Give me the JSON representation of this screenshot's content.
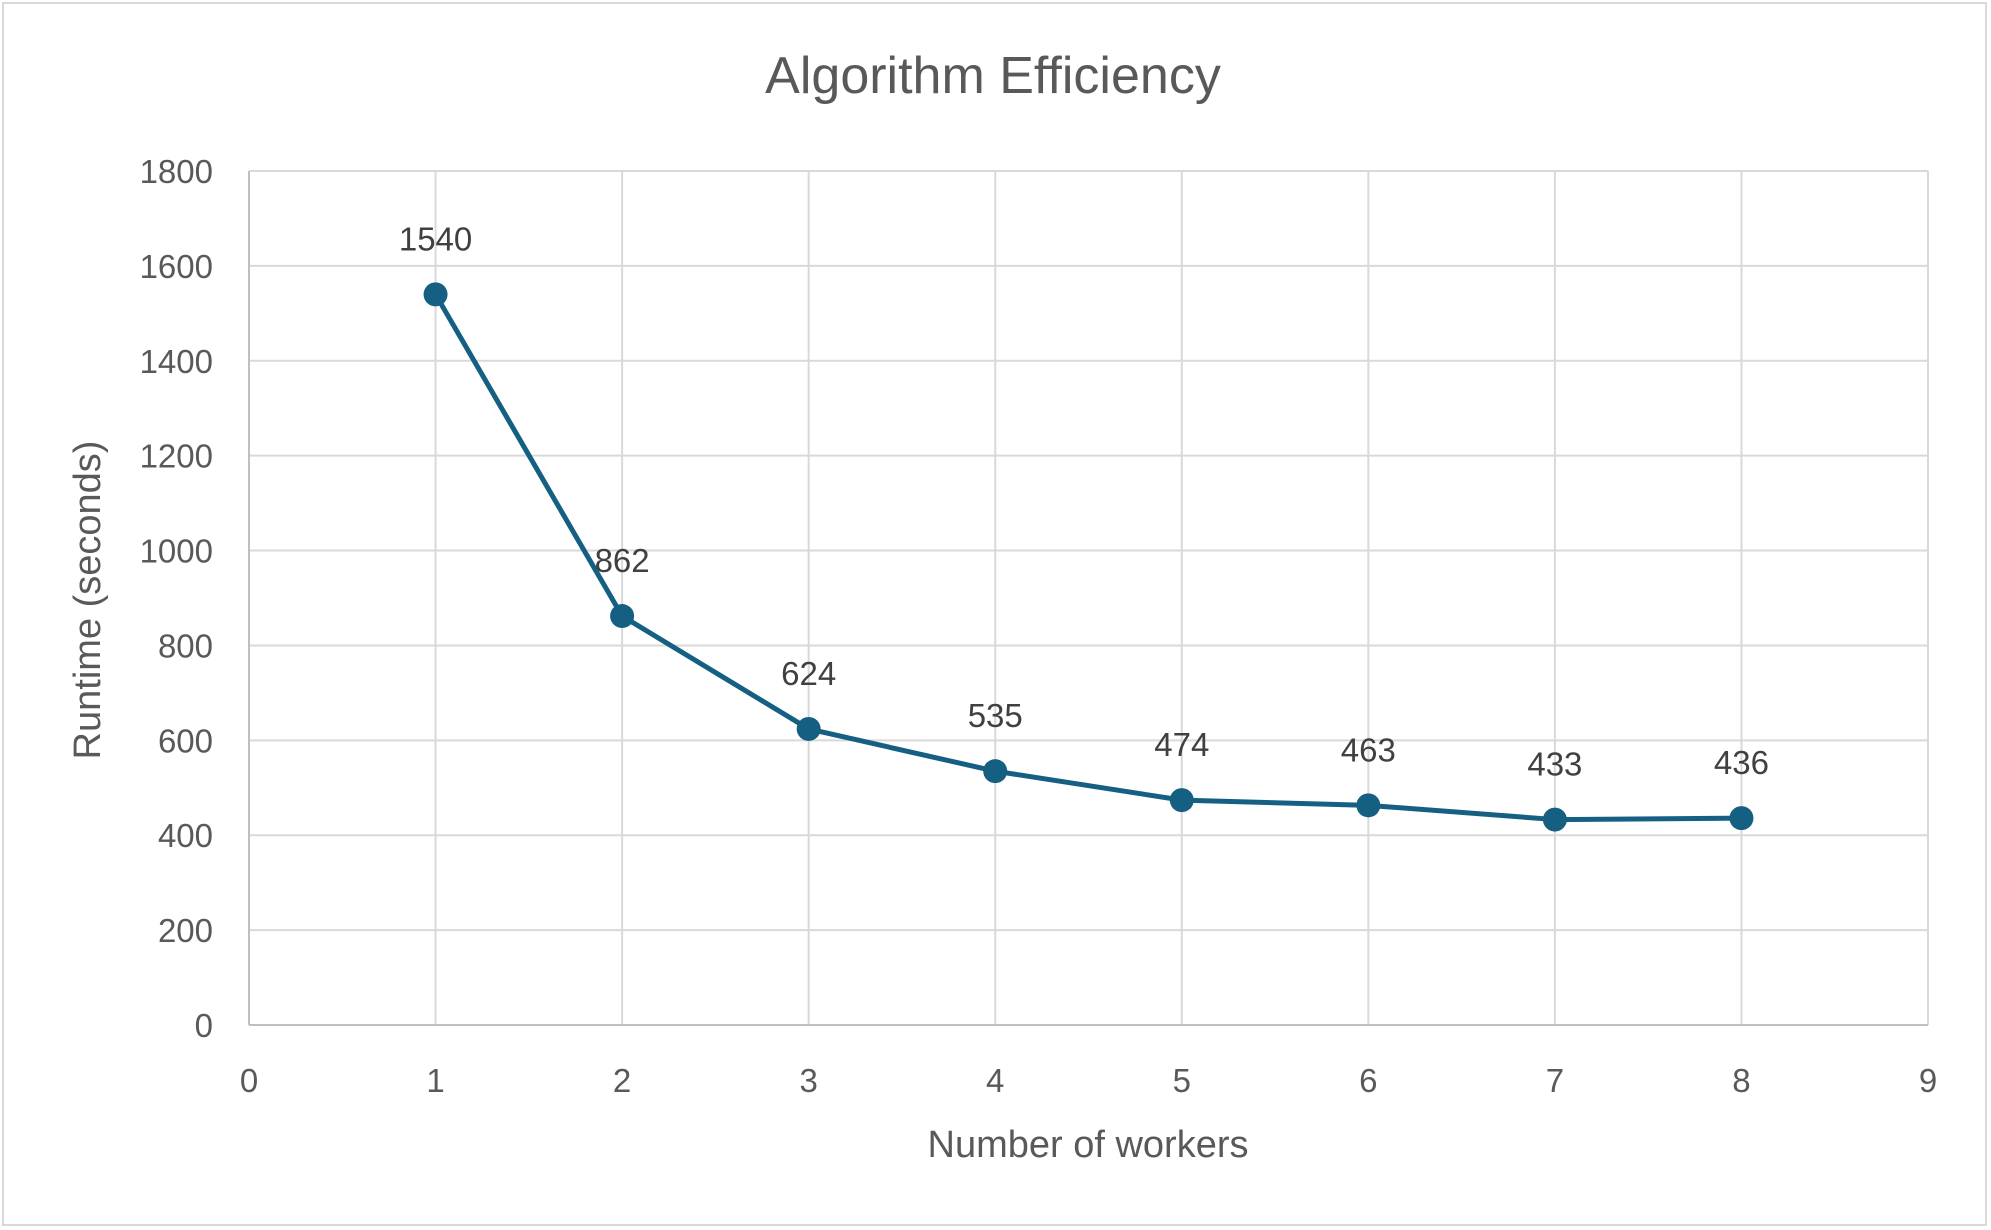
{
  "chart_data": {
    "type": "scatter",
    "title": "Algorithm Efficiency",
    "xlabel": "Number of workers",
    "ylabel": "Runtime (seconds)",
    "xlim": [
      0,
      9
    ],
    "ylim": [
      0,
      1800
    ],
    "x_ticks": [
      0,
      1,
      2,
      3,
      4,
      5,
      6,
      7,
      8,
      9
    ],
    "y_ticks": [
      0,
      200,
      400,
      600,
      800,
      1000,
      1200,
      1400,
      1600,
      1800
    ],
    "grid": true,
    "legend": "none",
    "line_style": "straight lines with markers",
    "series": [
      {
        "x": [
          1,
          2,
          3,
          4,
          5,
          6,
          7,
          8
        ],
        "values": [
          1540,
          862,
          624,
          535,
          474,
          463,
          433,
          436
        ],
        "data_labels": [
          "1540",
          "862",
          "624",
          "535",
          "474",
          "463",
          "433",
          "436"
        ],
        "color": "#156082"
      }
    ]
  }
}
